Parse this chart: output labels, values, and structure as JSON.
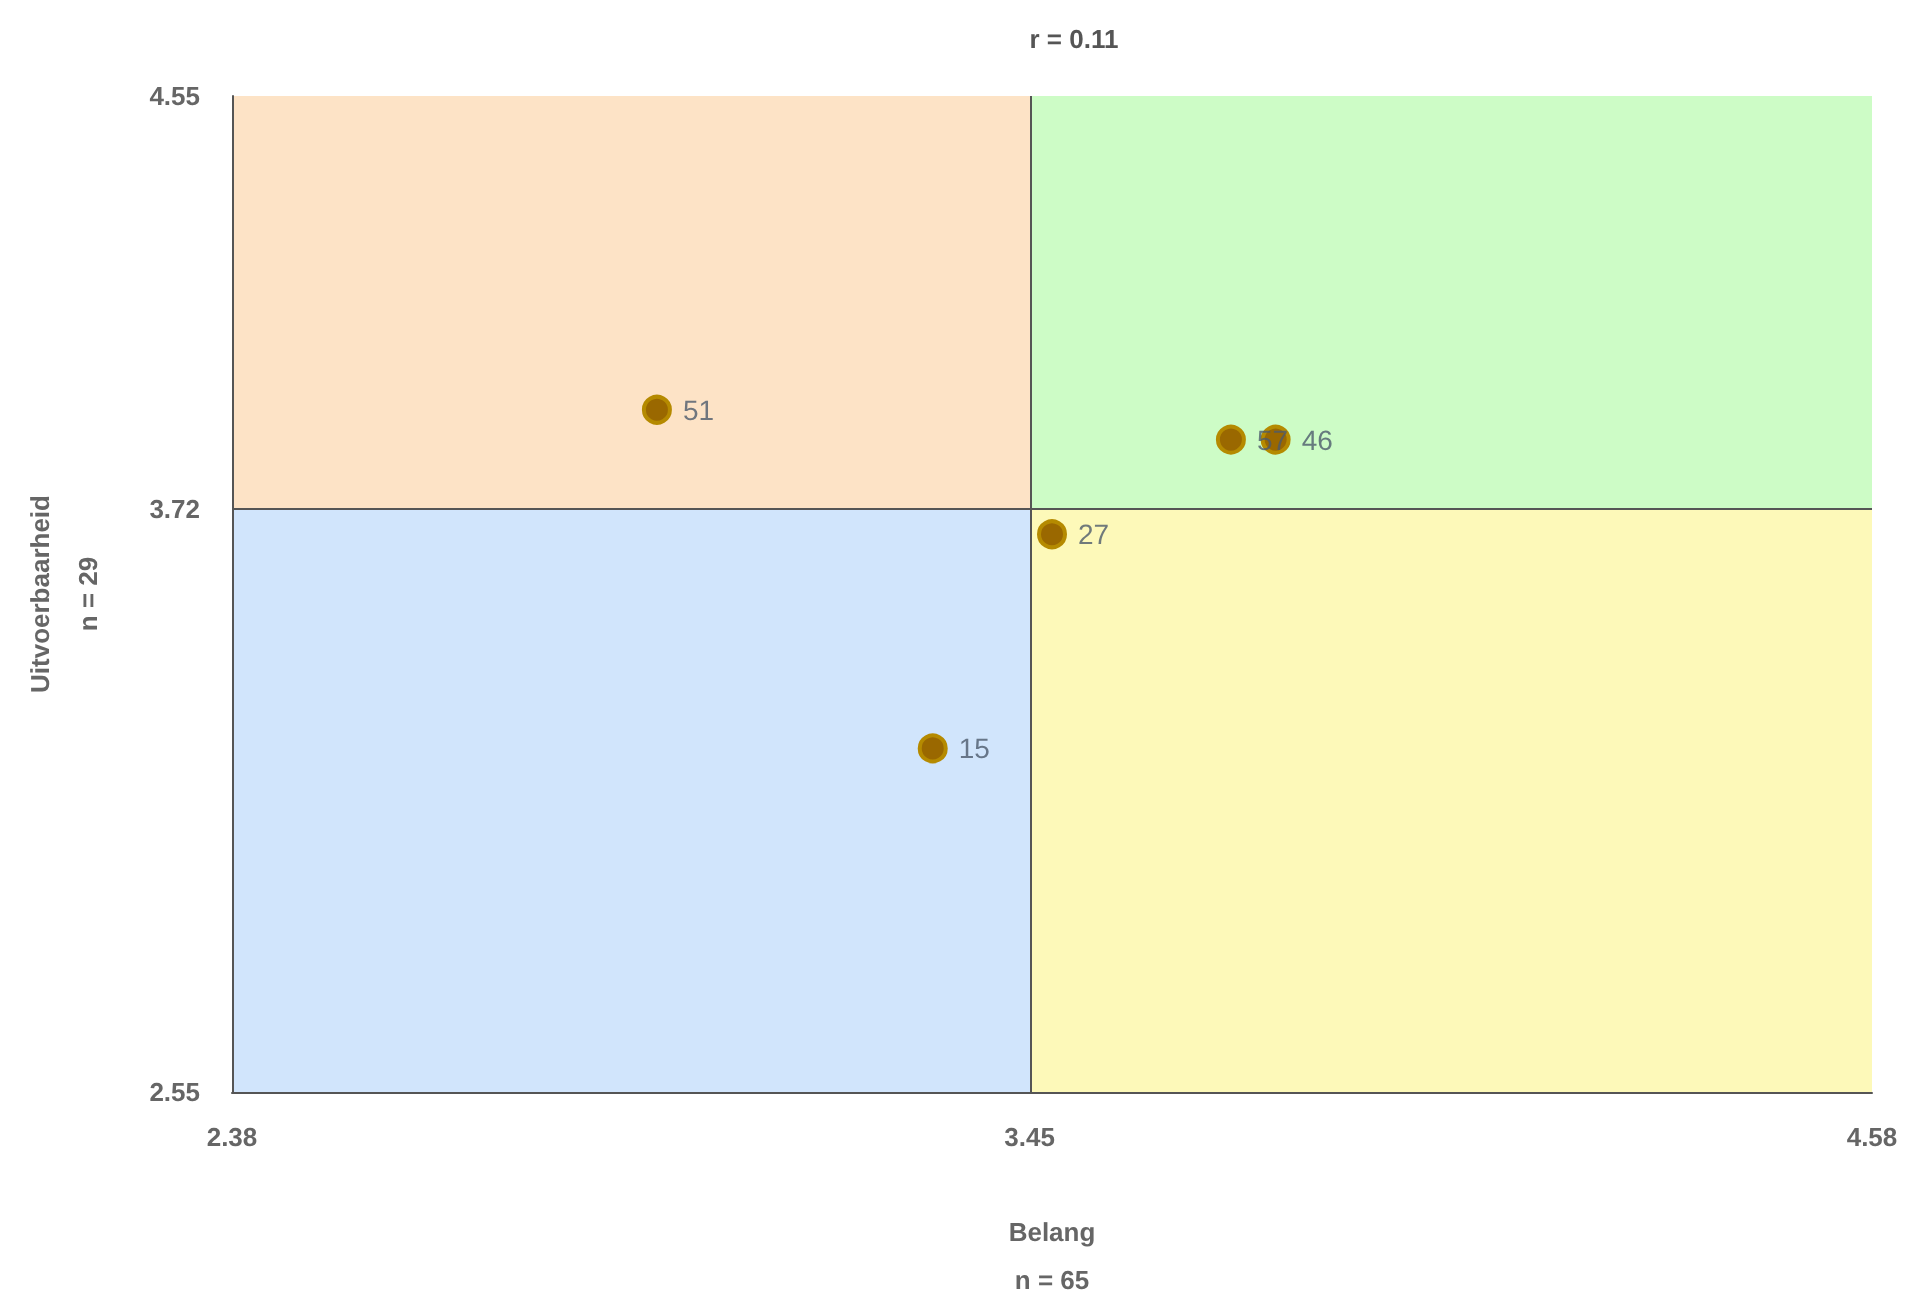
{
  "chart_data": {
    "type": "scatter",
    "title": "r = 0.11",
    "xlabel": "Belang\nn = 65",
    "ylabel": "Uitvoerbaarheid\nn = 29",
    "x": [
      2.95,
      3.72,
      3.78,
      3.48,
      3.32
    ],
    "series": [
      {
        "color": "#9a6800",
        "values": [
          3.92,
          3.86,
          3.86,
          3.67,
          3.24
        ]
      }
    ],
    "annotations": [
      {
        "text": "51",
        "x": 2.95,
        "y": 3.92
      },
      {
        "text": "57",
        "x": 3.72,
        "y": 3.86
      },
      {
        "text": "46",
        "x": 3.78,
        "y": 3.86
      },
      {
        "text": "27",
        "x": 3.48,
        "y": 3.67
      },
      {
        "text": "15",
        "x": 3.32,
        "y": 3.24
      }
    ],
    "xlim": [
      2.38,
      4.58
    ],
    "xticks": [
      2.38,
      3.45,
      4.58
    ],
    "ylim": [
      2.55,
      4.55
    ],
    "yticks": [
      2.55,
      3.72,
      4.55
    ],
    "grid": false,
    "marker": "circle",
    "ref_lines": [
      {
        "axis": "x",
        "value": 3.45
      },
      {
        "axis": "y",
        "value": 3.72
      }
    ]
  }
}
